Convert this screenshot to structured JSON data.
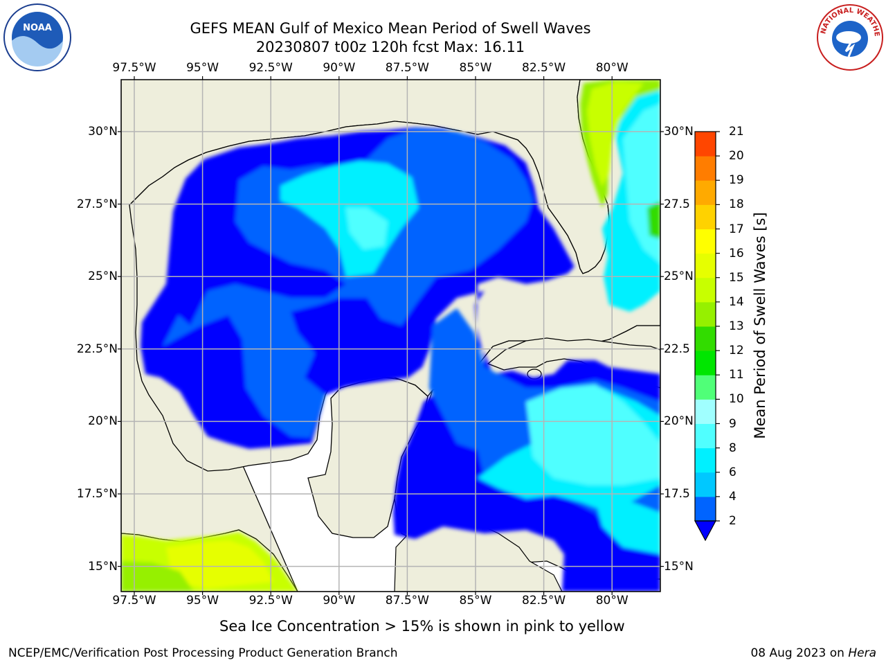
{
  "header": {
    "title_line1": "GEFS MEAN Gulf of Mexico Mean Period of Swell Waves",
    "title_line2": "20230807 t00z 120h fcst   Max: 16.11"
  },
  "logos": {
    "left": "NOAA",
    "right": "NATIONAL WEATHER SERVICE"
  },
  "map": {
    "lon_ticks": [
      "97.5°W",
      "95°W",
      "92.5°W",
      "90°W",
      "87.5°W",
      "85°W",
      "82.5°W",
      "80°W"
    ],
    "lat_ticks_left": [
      "30°N",
      "27.5°N",
      "25°N",
      "22.5°N",
      "20°N",
      "17.5°N",
      "15°N"
    ],
    "lat_ticks_right": [
      "30°N",
      "27.5",
      "25°N",
      "22.5",
      "20°N",
      "17.5",
      "15°N"
    ],
    "colors": {
      "land": "#eeeedc",
      "ocean_mask": "#ffffff",
      "grid": "#b4b4b4",
      "coast": "#000000"
    }
  },
  "colorbar": {
    "label": "Mean Period of Swell Waves [s]",
    "ticks": [
      "2",
      "4",
      "6",
      "8",
      "9",
      "10",
      "11",
      "12",
      "13",
      "14",
      "15",
      "16",
      "17",
      "18",
      "19",
      "20",
      "21"
    ],
    "colors": [
      "#0064ff",
      "#00c8ff",
      "#00f0ff",
      "#50ffff",
      "#a0ffff",
      "#50ff78",
      "#00e600",
      "#32dc00",
      "#96f000",
      "#c8ff00",
      "#e6ff00",
      "#ffff00",
      "#ffd200",
      "#ffaa00",
      "#ff7d00",
      "#ff4600",
      "#ff0000"
    ],
    "under_color": "#0000ff"
  },
  "footer": {
    "note": "Sea Ice Concentration > 15% is shown in pink to yellow",
    "org": "NCEP/EMC/Verification Post Processing Product Generation Branch",
    "date": "08 Aug 2023 on",
    "machine": "Hera"
  }
}
